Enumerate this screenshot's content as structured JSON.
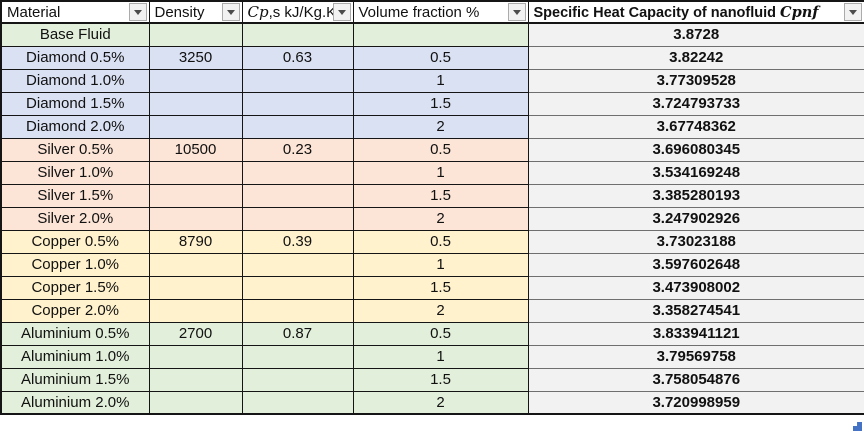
{
  "table": {
    "headers": [
      {
        "pre": "Material",
        "math": "",
        "post": ""
      },
      {
        "pre": "Density",
        "math": "",
        "post": ""
      },
      {
        "pre": "",
        "math": "Cp",
        "post": ",s kJ/Kg.K"
      },
      {
        "pre": "Volume fraction %",
        "math": "",
        "post": ""
      },
      {
        "pre": "Specific Heat Capacity of nanofluid ",
        "math": "Cpnf",
        "post": ""
      }
    ],
    "rows": [
      {
        "material": "Base Fluid",
        "density": "",
        "cp": "",
        "volume_fraction": "",
        "specific_heat": "3.8728",
        "group": "base"
      },
      {
        "material": "Diamond 0.5%",
        "density": "3250",
        "cp": "0.63",
        "volume_fraction": "0.5",
        "specific_heat": "3.82242",
        "group": "diamond"
      },
      {
        "material": "Diamond 1.0%",
        "density": "",
        "cp": "",
        "volume_fraction": "1",
        "specific_heat": "3.77309528",
        "group": "diamond"
      },
      {
        "material": "Diamond 1.5%",
        "density": "",
        "cp": "",
        "volume_fraction": "1.5",
        "specific_heat": "3.724793733",
        "group": "diamond"
      },
      {
        "material": "Diamond 2.0%",
        "density": "",
        "cp": "",
        "volume_fraction": "2",
        "specific_heat": "3.67748362",
        "group": "diamond"
      },
      {
        "material": "Silver 0.5%",
        "density": "10500",
        "cp": "0.23",
        "volume_fraction": "0.5",
        "specific_heat": "3.696080345",
        "group": "silver"
      },
      {
        "material": "Silver 1.0%",
        "density": "",
        "cp": "",
        "volume_fraction": "1",
        "specific_heat": "3.534169248",
        "group": "silver"
      },
      {
        "material": "Silver 1.5%",
        "density": "",
        "cp": "",
        "volume_fraction": "1.5",
        "specific_heat": "3.385280193",
        "group": "silver"
      },
      {
        "material": "Silver 2.0%",
        "density": "",
        "cp": "",
        "volume_fraction": "2",
        "specific_heat": "3.247902926",
        "group": "silver"
      },
      {
        "material": "Copper 0.5%",
        "density": "8790",
        "cp": "0.39",
        "volume_fraction": "0.5",
        "specific_heat": "3.73023188",
        "group": "copper"
      },
      {
        "material": "Copper 1.0%",
        "density": "",
        "cp": "",
        "volume_fraction": "1",
        "specific_heat": "3.597602648",
        "group": "copper"
      },
      {
        "material": "Copper 1.5%",
        "density": "",
        "cp": "",
        "volume_fraction": "1.5",
        "specific_heat": "3.473908002",
        "group": "copper"
      },
      {
        "material": "Copper 2.0%",
        "density": "",
        "cp": "",
        "volume_fraction": "2",
        "specific_heat": "3.358274541",
        "group": "copper"
      },
      {
        "material": "Aluminium 0.5%",
        "density": "2700",
        "cp": "0.87",
        "volume_fraction": "0.5",
        "specific_heat": "3.833941121",
        "group": "aluminium"
      },
      {
        "material": "Aluminium 1.0%",
        "density": "",
        "cp": "",
        "volume_fraction": "1",
        "specific_heat": "3.79569758",
        "group": "aluminium"
      },
      {
        "material": "Aluminium 1.5%",
        "density": "",
        "cp": "",
        "volume_fraction": "1.5",
        "specific_heat": "3.758054876",
        "group": "aluminium"
      },
      {
        "material": "Aluminium 2.0%",
        "density": "",
        "cp": "",
        "volume_fraction": "2",
        "specific_heat": "3.720998959",
        "group": "aluminium"
      }
    ],
    "group_colors": {
      "base": "#E2EFDA",
      "diamond": "#DAE1F3",
      "silver": "#FCE4D6",
      "copper": "#FFF2CC",
      "aluminium": "#E2EFDA"
    },
    "header_bg": "#FFFFFF",
    "value_column_bg": "#F2F2F2",
    "border_color": "#151515",
    "resize_handle_color": "#4472C4"
  }
}
